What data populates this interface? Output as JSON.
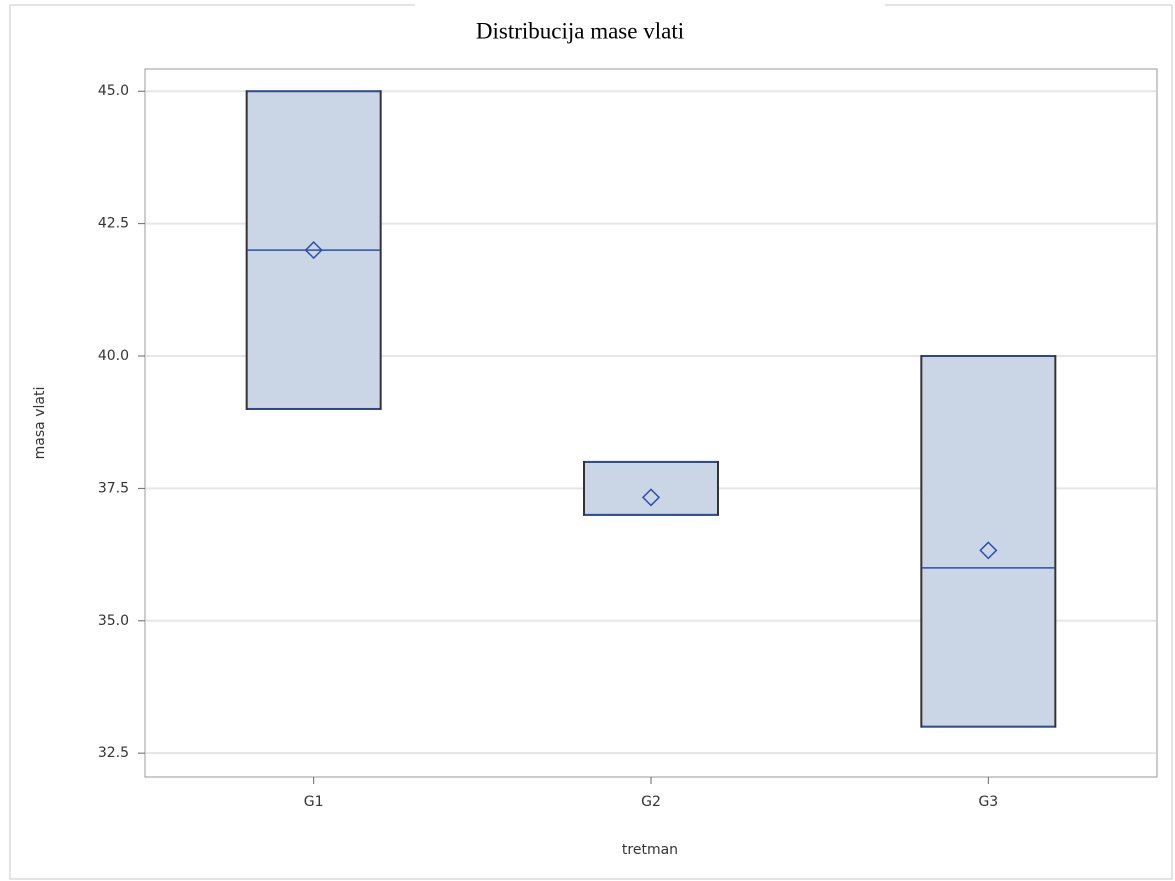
{
  "chart_data": {
    "type": "box",
    "title": "Distribucija mase vlati",
    "x_label": "tretman",
    "y_label": "masa vlati",
    "categories": [
      "G1",
      "G2",
      "G3"
    ],
    "min": [
      39,
      37,
      33
    ],
    "q1": [
      39,
      37,
      33
    ],
    "median": [
      42,
      37,
      36
    ],
    "q3": [
      45,
      38,
      40
    ],
    "max": [
      45,
      38,
      40
    ],
    "mean": [
      42,
      37.33,
      36.33
    ],
    "box_color": "#cad5e5",
    "line_color": "#2a4fa8",
    "ylim": [
      32.05,
      45.42
    ],
    "yticks": [
      32.5,
      {
        "value": 35,
        "label": "35.0"
      },
      37.5,
      {
        "value": 40,
        "label": "40.0"
      },
      42.5,
      {
        "value": 45,
        "label": "45.0"
      }
    ],
    "grid": true
  }
}
